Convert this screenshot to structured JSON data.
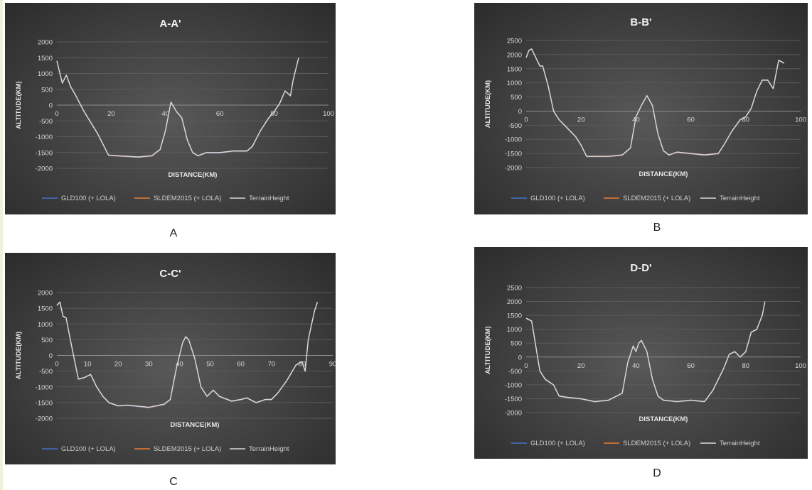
{
  "sublabels": [
    "A",
    "B",
    "C",
    "D"
  ],
  "colors": {
    "gld": "#4472c4",
    "sldem": "#ed7d31",
    "terrain": "#d9d9d9",
    "grid": "#5a5a5a",
    "zero": "#8c8c8c"
  },
  "chart_data": [
    {
      "type": "line",
      "title": "A-A'",
      "xlabel": "DISTANCE(KM)",
      "ylabel": "ALTITUDE(KM)",
      "xlim": [
        0,
        100
      ],
      "xticks": [
        0,
        20,
        40,
        60,
        80,
        100
      ],
      "ylim": [
        -2000,
        2000
      ],
      "yticks": [
        -2000,
        -1500,
        -1000,
        -500,
        0,
        500,
        1000,
        1500,
        2000
      ],
      "legend": "bottom",
      "series": [
        {
          "name": "GLD100 (+ LOLA)",
          "x": [
            0,
            2,
            3.5,
            5,
            7,
            10,
            15,
            19,
            22,
            30,
            35,
            38,
            40,
            42,
            44,
            46,
            48,
            50,
            52,
            55,
            60,
            65,
            70,
            72,
            75,
            78,
            80,
            82,
            84,
            86,
            87,
            89
          ],
          "y": [
            1400,
            700,
            950,
            600,
            300,
            -200,
            -900,
            -1580,
            -1600,
            -1640,
            -1600,
            -1400,
            -800,
            100,
            -200,
            -400,
            -1100,
            -1500,
            -1600,
            -1500,
            -1500,
            -1450,
            -1450,
            -1300,
            -800,
            -400,
            -200,
            50,
            450,
            300,
            800,
            1500
          ]
        },
        {
          "name": "SLDEM2015 (+ LOLA)",
          "x": [
            0,
            2,
            3.5,
            5,
            7,
            10,
            15,
            19,
            22,
            30,
            35,
            38,
            40,
            42,
            44,
            46,
            48,
            50,
            52,
            55,
            60,
            65,
            70,
            72,
            75,
            78,
            80,
            82,
            84,
            86,
            87,
            89
          ],
          "y": [
            1400,
            700,
            950,
            600,
            300,
            -200,
            -900,
            -1580,
            -1600,
            -1640,
            -1600,
            -1400,
            -800,
            100,
            -200,
            -400,
            -1100,
            -1500,
            -1600,
            -1500,
            -1500,
            -1450,
            -1450,
            -1300,
            -800,
            -400,
            -200,
            50,
            450,
            300,
            800,
            1500
          ]
        },
        {
          "name": "TerrainHeight",
          "x": [
            0,
            2,
            3.5,
            5,
            7,
            10,
            15,
            19,
            22,
            30,
            35,
            38,
            40,
            42,
            44,
            46,
            48,
            50,
            52,
            55,
            60,
            65,
            70,
            72,
            75,
            78,
            80,
            82,
            84,
            86,
            87,
            89
          ],
          "y": [
            1400,
            700,
            950,
            600,
            300,
            -200,
            -900,
            -1580,
            -1600,
            -1640,
            -1600,
            -1400,
            -800,
            100,
            -200,
            -400,
            -1100,
            -1500,
            -1600,
            -1500,
            -1500,
            -1450,
            -1450,
            -1300,
            -800,
            -400,
            -200,
            50,
            450,
            300,
            800,
            1500
          ]
        }
      ]
    },
    {
      "type": "line",
      "title": "B-B'",
      "xlabel": "DISTANCE(KM)",
      "ylabel": "ALTITUDE(KM)",
      "xlim": [
        0,
        100
      ],
      "xticks": [
        0,
        20,
        40,
        60,
        80,
        100
      ],
      "ylim": [
        -2000,
        2500
      ],
      "yticks": [
        -2000,
        -1500,
        -1000,
        -500,
        0,
        500,
        1000,
        1500,
        2000,
        2500
      ],
      "legend": "bottom",
      "series": [
        {
          "name": "GLD100 (+ LOLA)",
          "x": [
            0,
            1,
            2,
            3,
            5,
            6,
            8,
            10,
            12,
            15,
            18,
            20,
            22,
            25,
            30,
            35,
            38,
            40,
            42,
            44,
            46,
            48,
            50,
            52,
            55,
            60,
            65,
            70,
            72,
            75,
            78,
            80,
            82,
            84,
            86,
            88,
            90,
            92,
            94
          ],
          "y": [
            1900,
            2150,
            2200,
            2000,
            1600,
            1600,
            900,
            0,
            -300,
            -600,
            -900,
            -1200,
            -1600,
            -1600,
            -1600,
            -1550,
            -1300,
            -200,
            200,
            550,
            200,
            -800,
            -1400,
            -1550,
            -1450,
            -1500,
            -1550,
            -1500,
            -1200,
            -700,
            -300,
            -200,
            100,
            700,
            1100,
            1100,
            800,
            1800,
            1700
          ]
        },
        {
          "name": "SLDEM2015 (+ LOLA)",
          "x": [
            0,
            1,
            2,
            3,
            5,
            6,
            8,
            10,
            12,
            15,
            18,
            20,
            22,
            25,
            30,
            35,
            38,
            40,
            42,
            44,
            46,
            48,
            50,
            52,
            55,
            60,
            65,
            70,
            72,
            75,
            78,
            80,
            82,
            84,
            86,
            88,
            90,
            92,
            94
          ],
          "y": [
            1900,
            2150,
            2200,
            2000,
            1600,
            1600,
            900,
            0,
            -300,
            -600,
            -900,
            -1200,
            -1600,
            -1600,
            -1600,
            -1550,
            -1300,
            -200,
            200,
            550,
            200,
            -800,
            -1400,
            -1550,
            -1450,
            -1500,
            -1550,
            -1500,
            -1200,
            -700,
            -300,
            -200,
            100,
            700,
            1100,
            1100,
            800,
            1800,
            1700
          ]
        },
        {
          "name": "TerrainHeight",
          "x": [
            0,
            1,
            2,
            3,
            5,
            6,
            8,
            10,
            12,
            15,
            18,
            20,
            22,
            25,
            30,
            35,
            38,
            40,
            42,
            44,
            46,
            48,
            50,
            52,
            55,
            60,
            65,
            70,
            72,
            75,
            78,
            80,
            82,
            84,
            86,
            88,
            90,
            92,
            94
          ],
          "y": [
            1900,
            2150,
            2200,
            2000,
            1600,
            1600,
            900,
            0,
            -300,
            -600,
            -900,
            -1200,
            -1600,
            -1600,
            -1600,
            -1550,
            -1300,
            -200,
            200,
            550,
            200,
            -800,
            -1400,
            -1550,
            -1450,
            -1500,
            -1550,
            -1500,
            -1200,
            -700,
            -300,
            -200,
            100,
            700,
            1100,
            1100,
            800,
            1800,
            1700
          ]
        }
      ]
    },
    {
      "type": "line",
      "title": "C-C'",
      "xlabel": "DISTANCE(KM)",
      "ylabel": "ALTITUDE(KM)",
      "xlim": [
        0,
        90
      ],
      "xticks": [
        0,
        10,
        20,
        30,
        40,
        50,
        60,
        70,
        80,
        90
      ],
      "ylim": [
        -2000,
        2000
      ],
      "yticks": [
        -2000,
        -1500,
        -1000,
        -500,
        0,
        500,
        1000,
        1500,
        2000
      ],
      "legend": "bottom",
      "series": [
        {
          "name": "GLD100 (+ LOLA)",
          "x": [
            0,
            1,
            2,
            3,
            5,
            7,
            9,
            11,
            13,
            15,
            17,
            20,
            23,
            25,
            30,
            35,
            37,
            39,
            41,
            42,
            43,
            45,
            47,
            49,
            51,
            53,
            57,
            60,
            62,
            65,
            68,
            70,
            72,
            75,
            78,
            80,
            81,
            82,
            84,
            85
          ],
          "y": [
            1600,
            1700,
            1250,
            1200,
            200,
            -750,
            -700,
            -600,
            -1000,
            -1300,
            -1500,
            -1600,
            -1580,
            -1600,
            -1650,
            -1550,
            -1400,
            -400,
            400,
            600,
            500,
            -100,
            -1000,
            -1300,
            -1100,
            -1300,
            -1450,
            -1400,
            -1350,
            -1500,
            -1400,
            -1400,
            -1200,
            -800,
            -300,
            -200,
            -500,
            500,
            1400,
            1700
          ]
        },
        {
          "name": "SLDEM2015 (+ LOLA)",
          "x": [
            0,
            1,
            2,
            3,
            5,
            7,
            9,
            11,
            13,
            15,
            17,
            20,
            23,
            25,
            30,
            35,
            37,
            39,
            41,
            42,
            43,
            45,
            47,
            49,
            51,
            53,
            57,
            60,
            62,
            65,
            68,
            70,
            72,
            75,
            78,
            80,
            81,
            82,
            84,
            85
          ],
          "y": [
            1600,
            1700,
            1250,
            1200,
            200,
            -750,
            -700,
            -600,
            -1000,
            -1300,
            -1500,
            -1600,
            -1580,
            -1600,
            -1650,
            -1550,
            -1400,
            -400,
            400,
            600,
            500,
            -100,
            -1000,
            -1300,
            -1100,
            -1300,
            -1450,
            -1400,
            -1350,
            -1500,
            -1400,
            -1400,
            -1200,
            -800,
            -300,
            -200,
            -500,
            500,
            1400,
            1700
          ]
        },
        {
          "name": "TerrainHeight",
          "x": [
            0,
            1,
            2,
            3,
            5,
            7,
            9,
            11,
            13,
            15,
            17,
            20,
            23,
            25,
            30,
            35,
            37,
            39,
            41,
            42,
            43,
            45,
            47,
            49,
            51,
            53,
            57,
            60,
            62,
            65,
            68,
            70,
            72,
            75,
            78,
            80,
            81,
            82,
            84,
            85
          ],
          "y": [
            1600,
            1700,
            1250,
            1200,
            200,
            -750,
            -700,
            -600,
            -1000,
            -1300,
            -1500,
            -1600,
            -1580,
            -1600,
            -1650,
            -1550,
            -1400,
            -400,
            400,
            600,
            500,
            -100,
            -1000,
            -1300,
            -1100,
            -1300,
            -1450,
            -1400,
            -1350,
            -1500,
            -1400,
            -1400,
            -1200,
            -800,
            -300,
            -200,
            -500,
            500,
            1400,
            1700
          ]
        }
      ]
    },
    {
      "type": "line",
      "title": "D-D'",
      "xlabel": "DISTANCE(KM)",
      "ylabel": "ALTITUDE(KM)",
      "xlim": [
        0,
        100
      ],
      "xticks": [
        0,
        20,
        40,
        60,
        80,
        100
      ],
      "ylim": [
        -2000,
        2500
      ],
      "yticks": [
        -2000,
        -1500,
        -1000,
        -500,
        0,
        500,
        1000,
        1500,
        2000,
        2500
      ],
      "legend": "bottom",
      "series": [
        {
          "name": "GLD100 (+ LOLA)",
          "x": [
            0,
            2,
            3,
            5,
            7,
            10,
            12,
            15,
            20,
            25,
            30,
            35,
            37,
            39,
            40,
            41,
            42,
            44,
            46,
            48,
            50,
            55,
            60,
            65,
            68,
            70,
            72,
            74,
            76,
            78,
            80,
            82,
            84,
            86,
            87
          ],
          "y": [
            1400,
            1300,
            700,
            -500,
            -800,
            -1000,
            -1400,
            -1450,
            -1500,
            -1600,
            -1550,
            -1300,
            -200,
            400,
            200,
            500,
            600,
            200,
            -800,
            -1400,
            -1550,
            -1600,
            -1550,
            -1600,
            -1200,
            -800,
            -400,
            100,
            200,
            0,
            200,
            900,
            1000,
            1500,
            2000
          ]
        },
        {
          "name": "SLDEM2015 (+ LOLA)",
          "x": [
            0,
            2,
            3,
            5,
            7,
            10,
            12,
            15,
            20,
            25,
            30,
            35,
            37,
            39,
            40,
            41,
            42,
            44,
            46,
            48,
            50,
            55,
            60,
            65,
            68,
            70,
            72,
            74,
            76,
            78,
            80,
            82,
            84,
            86,
            87
          ],
          "y": [
            1400,
            1300,
            700,
            -500,
            -800,
            -1000,
            -1400,
            -1450,
            -1500,
            -1600,
            -1550,
            -1300,
            -200,
            400,
            200,
            500,
            600,
            200,
            -800,
            -1400,
            -1550,
            -1600,
            -1550,
            -1600,
            -1200,
            -800,
            -400,
            100,
            200,
            0,
            200,
            900,
            1000,
            1500,
            2000
          ]
        },
        {
          "name": "TerrainHeight",
          "x": [
            0,
            2,
            3,
            5,
            7,
            10,
            12,
            15,
            20,
            25,
            30,
            35,
            37,
            39,
            40,
            41,
            42,
            44,
            46,
            48,
            50,
            55,
            60,
            65,
            68,
            70,
            72,
            74,
            76,
            78,
            80,
            82,
            84,
            86,
            87
          ],
          "y": [
            1400,
            1300,
            700,
            -500,
            -800,
            -1000,
            -1400,
            -1450,
            -1500,
            -1600,
            -1550,
            -1300,
            -200,
            400,
            200,
            500,
            600,
            200,
            -800,
            -1400,
            -1550,
            -1600,
            -1550,
            -1600,
            -1200,
            -800,
            -400,
            100,
            200,
            0,
            200,
            900,
            1000,
            1500,
            2000
          ]
        }
      ]
    }
  ]
}
